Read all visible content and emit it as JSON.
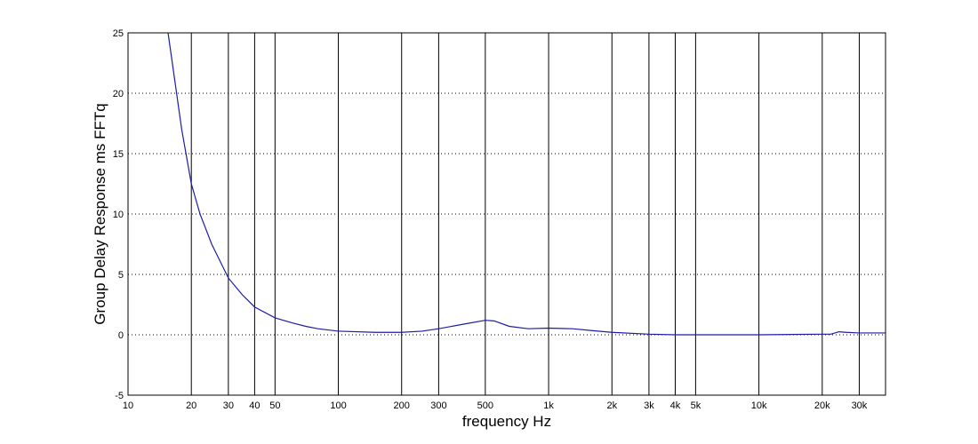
{
  "chart_data": {
    "type": "line",
    "xlabel": "frequency   Hz",
    "ylabel": "Group Delay Response ms    FFTq",
    "xscale": "log",
    "grid": true,
    "color": "#1c1ca8",
    "xlim": [
      10,
      40000
    ],
    "ylim": [
      -5,
      25
    ],
    "xticks": [
      10,
      20,
      30,
      40,
      50,
      100,
      200,
      300,
      500,
      {
        "value": 1000,
        "label": "1k"
      },
      {
        "value": 2000,
        "label": "2k"
      },
      {
        "value": 3000,
        "label": "3k"
      },
      {
        "value": 4000,
        "label": "4k"
      },
      {
        "value": 5000,
        "label": "5k"
      },
      {
        "value": 10000,
        "label": "10k"
      },
      {
        "value": 20000,
        "label": "20k"
      },
      {
        "value": 30000,
        "label": "30k"
      }
    ],
    "yticks": [
      -5,
      0,
      5,
      10,
      15,
      20,
      25
    ],
    "x": [
      15.5,
      18,
      20,
      22,
      25,
      30,
      35,
      40,
      50,
      60,
      70,
      80,
      100,
      150,
      200,
      250,
      300,
      400,
      500,
      550,
      650,
      800,
      1000,
      1300,
      1600,
      2000,
      3000,
      4000,
      10000,
      20000,
      22000,
      24000,
      26000,
      30000,
      40000
    ],
    "values": [
      25,
      17,
      12.5,
      10,
      7.5,
      4.7,
      3.3,
      2.3,
      1.4,
      1.0,
      0.7,
      0.5,
      0.3,
      0.2,
      0.2,
      0.3,
      0.5,
      0.9,
      1.2,
      1.15,
      0.7,
      0.5,
      0.55,
      0.5,
      0.35,
      0.2,
      0.05,
      0,
      0,
      0.05,
      0.05,
      0.25,
      0.2,
      0.15,
      0.15
    ]
  }
}
